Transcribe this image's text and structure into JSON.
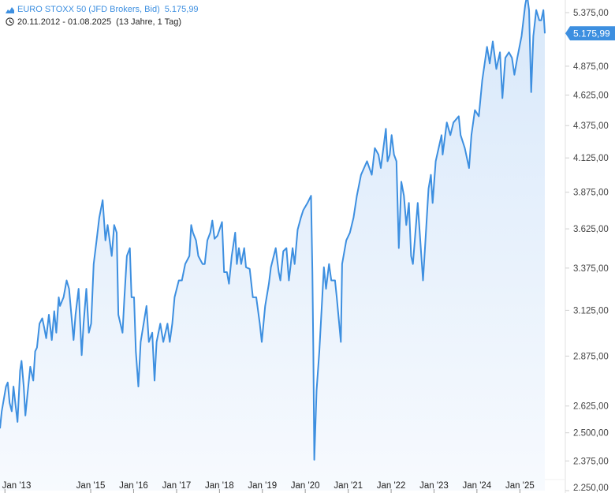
{
  "header": {
    "instrument": "EURO STOXX 50 (JFD Brokers, Bid)",
    "last_value": "5.175,99",
    "date_range": "20.11.2012 - 01.08.2025",
    "duration": "(13 Jahre, 1 Tag)",
    "icon_chart": "mountain-chart-icon",
    "icon_clock": "clock-icon"
  },
  "colors": {
    "line": "#3d8fe0",
    "fill_top": "#d8e8fa",
    "fill_bottom": "#f7fafe",
    "tag": "#3d8fe0",
    "axis": "#e2e2e2"
  },
  "chart_data": {
    "type": "area",
    "title": "",
    "xlabel": "",
    "ylabel": "",
    "y_scale": "log",
    "ylim": [
      2250,
      5500
    ],
    "xlim": [
      "2012-11-20",
      "2025-08-01"
    ],
    "grid": false,
    "y_ticks": [
      {
        "value": 2250,
        "label": "2.250,00"
      },
      {
        "value": 2375,
        "label": "2.375,00"
      },
      {
        "value": 2500,
        "label": "2.500,00"
      },
      {
        "value": 2625,
        "label": "2.625,00"
      },
      {
        "value": 2875,
        "label": "2.875,00"
      },
      {
        "value": 3125,
        "label": "3.125,00"
      },
      {
        "value": 3375,
        "label": "3.375,00"
      },
      {
        "value": 3625,
        "label": "3.625,00"
      },
      {
        "value": 3875,
        "label": "3.875,00"
      },
      {
        "value": 4125,
        "label": "4.125,00"
      },
      {
        "value": 4375,
        "label": "4.375,00"
      },
      {
        "value": 4625,
        "label": "4.625,00"
      },
      {
        "value": 4875,
        "label": "4.875,00"
      },
      {
        "value": 5375,
        "label": "5.375,00"
      }
    ],
    "x_ticks": [
      {
        "date": "2013-01-01",
        "label": "Jan '13"
      },
      {
        "date": "2015-01-01",
        "label": "Jan '15"
      },
      {
        "date": "2016-01-01",
        "label": "Jan '16"
      },
      {
        "date": "2017-01-01",
        "label": "Jan '17"
      },
      {
        "date": "2018-01-01",
        "label": "Jan '18"
      },
      {
        "date": "2019-01-01",
        "label": "Jan '19"
      },
      {
        "date": "2020-01-01",
        "label": "Jan '20"
      },
      {
        "date": "2021-01-01",
        "label": "Jan '21"
      },
      {
        "date": "2022-01-01",
        "label": "Jan '22"
      },
      {
        "date": "2023-01-01",
        "label": "Jan '23"
      },
      {
        "date": "2024-01-01",
        "label": "Jan '24"
      },
      {
        "date": "2025-01-01",
        "label": "Jan '25"
      }
    ],
    "last_value": {
      "value": 5175.99,
      "label": "5.175,99"
    },
    "series": [
      {
        "points": [
          [
            "2012-11-20",
            2520
          ],
          [
            "2012-12-05",
            2600
          ],
          [
            "2012-12-20",
            2650
          ],
          [
            "2013-01-10",
            2720
          ],
          [
            "2013-01-25",
            2740
          ],
          [
            "2013-02-10",
            2640
          ],
          [
            "2013-02-28",
            2600
          ],
          [
            "2013-03-15",
            2720
          ],
          [
            "2013-04-01",
            2630
          ],
          [
            "2013-04-18",
            2550
          ],
          [
            "2013-05-10",
            2800
          ],
          [
            "2013-05-22",
            2850
          ],
          [
            "2013-06-10",
            2720
          ],
          [
            "2013-06-24",
            2580
          ],
          [
            "2013-07-15",
            2700
          ],
          [
            "2013-08-05",
            2820
          ],
          [
            "2013-08-30",
            2750
          ],
          [
            "2013-09-15",
            2900
          ],
          [
            "2013-10-01",
            2920
          ],
          [
            "2013-10-22",
            3050
          ],
          [
            "2013-11-15",
            3080
          ],
          [
            "2013-12-01",
            3030
          ],
          [
            "2013-12-18",
            2970
          ],
          [
            "2014-01-10",
            3100
          ],
          [
            "2014-02-04",
            2960
          ],
          [
            "2014-02-25",
            3120
          ],
          [
            "2014-03-14",
            3000
          ],
          [
            "2014-04-04",
            3200
          ],
          [
            "2014-04-15",
            3150
          ],
          [
            "2014-05-15",
            3200
          ],
          [
            "2014-06-10",
            3300
          ],
          [
            "2014-07-01",
            3250
          ],
          [
            "2014-07-20",
            3100
          ],
          [
            "2014-08-08",
            2960
          ],
          [
            "2014-08-25",
            3100
          ],
          [
            "2014-09-20",
            3250
          ],
          [
            "2014-10-16",
            2880
          ],
          [
            "2014-11-01",
            3050
          ],
          [
            "2014-11-25",
            3250
          ],
          [
            "2014-12-16",
            3000
          ],
          [
            "2015-01-05",
            3050
          ],
          [
            "2015-01-26",
            3400
          ],
          [
            "2015-02-20",
            3550
          ],
          [
            "2015-03-15",
            3700
          ],
          [
            "2015-04-13",
            3820
          ],
          [
            "2015-05-06",
            3550
          ],
          [
            "2015-05-25",
            3650
          ],
          [
            "2015-06-29",
            3450
          ],
          [
            "2015-07-20",
            3650
          ],
          [
            "2015-08-10",
            3600
          ],
          [
            "2015-08-24",
            3100
          ],
          [
            "2015-09-29",
            3000
          ],
          [
            "2015-10-15",
            3200
          ],
          [
            "2015-11-05",
            3450
          ],
          [
            "2015-11-30",
            3500
          ],
          [
            "2015-12-14",
            3200
          ],
          [
            "2016-01-05",
            3200
          ],
          [
            "2016-01-20",
            2900
          ],
          [
            "2016-02-11",
            2720
          ],
          [
            "2016-03-01",
            2950
          ],
          [
            "2016-04-20",
            3150
          ],
          [
            "2016-05-10",
            2950
          ],
          [
            "2016-06-08",
            3000
          ],
          [
            "2016-06-27",
            2750
          ],
          [
            "2016-07-15",
            2950
          ],
          [
            "2016-08-15",
            3050
          ],
          [
            "2016-09-10",
            2950
          ],
          [
            "2016-10-15",
            3050
          ],
          [
            "2016-11-04",
            2950
          ],
          [
            "2016-11-25",
            3050
          ],
          [
            "2016-12-15",
            3200
          ],
          [
            "2017-01-20",
            3300
          ],
          [
            "2017-02-15",
            3300
          ],
          [
            "2017-03-15",
            3400
          ],
          [
            "2017-04-20",
            3450
          ],
          [
            "2017-05-05",
            3650
          ],
          [
            "2017-05-20",
            3600
          ],
          [
            "2017-06-15",
            3550
          ],
          [
            "2017-07-05",
            3450
          ],
          [
            "2017-08-10",
            3400
          ],
          [
            "2017-08-29",
            3400
          ],
          [
            "2017-09-20",
            3550
          ],
          [
            "2017-10-15",
            3600
          ],
          [
            "2017-11-01",
            3680
          ],
          [
            "2017-11-20",
            3560
          ],
          [
            "2017-12-15",
            3580
          ],
          [
            "2018-01-23",
            3670
          ],
          [
            "2018-02-09",
            3350
          ],
          [
            "2018-03-05",
            3350
          ],
          [
            "2018-03-23",
            3280
          ],
          [
            "2018-04-15",
            3450
          ],
          [
            "2018-05-15",
            3600
          ],
          [
            "2018-05-29",
            3400
          ],
          [
            "2018-06-15",
            3500
          ],
          [
            "2018-07-05",
            3400
          ],
          [
            "2018-07-30",
            3500
          ],
          [
            "2018-08-15",
            3380
          ],
          [
            "2018-09-15",
            3370
          ],
          [
            "2018-10-12",
            3200
          ],
          [
            "2018-11-10",
            3200
          ],
          [
            "2018-12-10",
            3050
          ],
          [
            "2018-12-27",
            2950
          ],
          [
            "2019-01-25",
            3150
          ],
          [
            "2019-02-25",
            3280
          ],
          [
            "2019-03-15",
            3380
          ],
          [
            "2019-04-25",
            3500
          ],
          [
            "2019-05-20",
            3350
          ],
          [
            "2019-06-03",
            3300
          ],
          [
            "2019-06-28",
            3480
          ],
          [
            "2019-07-25",
            3500
          ],
          [
            "2019-08-15",
            3300
          ],
          [
            "2019-09-15",
            3500
          ],
          [
            "2019-10-03",
            3400
          ],
          [
            "2019-10-28",
            3620
          ],
          [
            "2019-11-25",
            3700
          ],
          [
            "2019-12-15",
            3750
          ],
          [
            "2020-01-20",
            3800
          ],
          [
            "2020-02-19",
            3850
          ],
          [
            "2020-03-02",
            3350
          ],
          [
            "2020-03-10",
            2900
          ],
          [
            "2020-03-18",
            2380
          ],
          [
            "2020-04-06",
            2700
          ],
          [
            "2020-04-30",
            2900
          ],
          [
            "2020-06-08",
            3380
          ],
          [
            "2020-06-26",
            3250
          ],
          [
            "2020-07-21",
            3400
          ],
          [
            "2020-08-10",
            3300
          ],
          [
            "2020-09-10",
            3300
          ],
          [
            "2020-09-25",
            3200
          ],
          [
            "2020-10-30",
            2950
          ],
          [
            "2020-11-10",
            3400
          ],
          [
            "2020-12-15",
            3550
          ],
          [
            "2021-01-15",
            3600
          ],
          [
            "2021-02-15",
            3700
          ],
          [
            "2021-03-15",
            3850
          ],
          [
            "2021-04-20",
            4000
          ],
          [
            "2021-06-10",
            4100
          ],
          [
            "2021-07-20",
            4000
          ],
          [
            "2021-08-15",
            4200
          ],
          [
            "2021-09-15",
            4150
          ],
          [
            "2021-10-05",
            4050
          ],
          [
            "2021-11-17",
            4350
          ],
          [
            "2021-12-01",
            4100
          ],
          [
            "2021-12-20",
            4150
          ],
          [
            "2022-01-05",
            4300
          ],
          [
            "2022-01-25",
            4150
          ],
          [
            "2022-02-15",
            4100
          ],
          [
            "2022-03-07",
            3500
          ],
          [
            "2022-03-29",
            3950
          ],
          [
            "2022-04-20",
            3850
          ],
          [
            "2022-05-10",
            3650
          ],
          [
            "2022-06-01",
            3800
          ],
          [
            "2022-06-20",
            3450
          ],
          [
            "2022-07-05",
            3400
          ],
          [
            "2022-08-15",
            3800
          ],
          [
            "2022-09-29",
            3300
          ],
          [
            "2022-10-20",
            3550
          ],
          [
            "2022-11-15",
            3900
          ],
          [
            "2022-12-05",
            4000
          ],
          [
            "2022-12-20",
            3800
          ],
          [
            "2023-01-15",
            4100
          ],
          [
            "2023-03-06",
            4300
          ],
          [
            "2023-03-15",
            4150
          ],
          [
            "2023-04-20",
            4400
          ],
          [
            "2023-05-20",
            4300
          ],
          [
            "2023-06-15",
            4400
          ],
          [
            "2023-07-30",
            4450
          ],
          [
            "2023-08-15",
            4300
          ],
          [
            "2023-09-20",
            4200
          ],
          [
            "2023-10-26",
            4050
          ],
          [
            "2023-11-15",
            4300
          ],
          [
            "2023-12-15",
            4500
          ],
          [
            "2024-01-17",
            4450
          ],
          [
            "2024-02-15",
            4750
          ],
          [
            "2024-03-27",
            5050
          ],
          [
            "2024-04-19",
            4900
          ],
          [
            "2024-05-15",
            5100
          ],
          [
            "2024-06-14",
            4850
          ],
          [
            "2024-07-15",
            5000
          ],
          [
            "2024-08-05",
            4600
          ],
          [
            "2024-08-30",
            4950
          ],
          [
            "2024-09-30",
            5000
          ],
          [
            "2024-10-25",
            4950
          ],
          [
            "2024-11-15",
            4800
          ],
          [
            "2024-12-10",
            4950
          ],
          [
            "2025-01-15",
            5150
          ],
          [
            "2025-02-15",
            5450
          ],
          [
            "2025-03-03",
            5550
          ],
          [
            "2025-03-20",
            5400
          ],
          [
            "2025-04-07",
            4650
          ],
          [
            "2025-04-25",
            5150
          ],
          [
            "2025-05-20",
            5400
          ],
          [
            "2025-06-15",
            5300
          ],
          [
            "2025-07-01",
            5300
          ],
          [
            "2025-07-20",
            5400
          ],
          [
            "2025-08-01",
            5175.99
          ]
        ]
      }
    ]
  }
}
